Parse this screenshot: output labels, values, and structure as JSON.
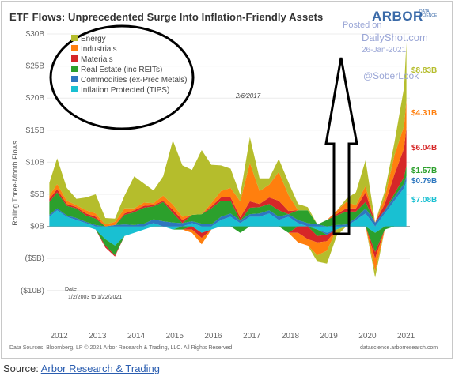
{
  "header": {
    "title": "ETF Flows: Unprecedented Surge Into Inflation-Friendly Assets",
    "brand": "ARBOR",
    "brand_sub": "DATA SCIENCE"
  },
  "watermark": {
    "posted": "Posted on",
    "site": "DailyShot.com",
    "date": "26-Jan-2021",
    "handle": "@SoberLook"
  },
  "footer": {
    "left": "Data Sources: Bloomberg, LP © 2021 Arbor Research & Trading, LLC. All Rights Reserved",
    "right": "datascience.arborresearch.com"
  },
  "source": {
    "prefix": "Source: ",
    "link": "Arbor Research & Trading"
  },
  "chart_data": {
    "type": "area",
    "ylabel": "Rolling Three-Month Flows",
    "y_ticks": [
      "$30B",
      "$25B",
      "$20B",
      "$15B",
      "$10B",
      "$5B",
      "$0B",
      "($5B)",
      "($10B)"
    ],
    "y_tick_values": [
      30,
      25,
      20,
      15,
      10,
      5,
      0,
      -5,
      -10
    ],
    "ylim": [
      -12,
      30
    ],
    "x_ticks": [
      "2012",
      "2013",
      "2014",
      "2015",
      "2016",
      "2017",
      "2018",
      "2019",
      "2020",
      "2021"
    ],
    "xlim": [
      2011.75,
      2021.15
    ],
    "legend_position": "top-left",
    "annotation": "2/6/2017",
    "date_note_label": "Date",
    "date_note_range": "1/2/2003 to 1/22/2021",
    "x": [
      2011.8,
      2012.0,
      2012.25,
      2012.5,
      2012.75,
      2013.0,
      2013.25,
      2013.5,
      2013.75,
      2014.0,
      2014.25,
      2014.5,
      2014.75,
      2015.0,
      2015.25,
      2015.5,
      2015.75,
      2016.0,
      2016.25,
      2016.5,
      2016.75,
      2017.0,
      2017.25,
      2017.5,
      2017.75,
      2018.0,
      2018.25,
      2018.5,
      2018.75,
      2019.0,
      2019.25,
      2019.5,
      2019.75,
      2020.0,
      2020.25,
      2020.5,
      2020.75,
      2021.0,
      2021.06
    ],
    "series": [
      {
        "name": "Inflation Protected (TIPS)",
        "color": "#19c0d2",
        "end_label": "$7.08B",
        "values": [
          1.5,
          2.5,
          1.5,
          1.0,
          0.5,
          -0.5,
          -2.0,
          -3.0,
          -1.5,
          -1.0,
          -0.5,
          0.5,
          0.0,
          -0.5,
          0.0,
          0.5,
          -1.0,
          -0.5,
          1.0,
          1.5,
          0.5,
          1.5,
          1.5,
          2.0,
          1.0,
          1.5,
          0.5,
          0.0,
          -0.5,
          -1.0,
          -0.5,
          0.0,
          1.0,
          2.0,
          -1.0,
          2.0,
          4.0,
          6.0,
          7.08
        ]
      },
      {
        "name": "Commodities (ex-Prec Metals)",
        "color": "#2e77bf",
        "end_label": "$0.79B",
        "values": [
          0.3,
          0.3,
          0.2,
          0.3,
          0.2,
          0.2,
          0.0,
          0.2,
          0.3,
          0.2,
          0.4,
          0.6,
          0.8,
          0.6,
          0.5,
          0.3,
          0.4,
          0.3,
          0.5,
          0.5,
          0.4,
          0.4,
          0.5,
          0.5,
          0.5,
          0.4,
          0.5,
          0.5,
          0.3,
          -0.3,
          0.2,
          0.3,
          0.3,
          0.8,
          0.6,
          0.5,
          0.6,
          0.7,
          0.79
        ]
      },
      {
        "name": "Real Estate (inc REITs)",
        "color": "#2ca02c",
        "end_label": "$1.57B",
        "values": [
          2.0,
          2.5,
          1.5,
          1.5,
          1.0,
          1.0,
          -1.0,
          -1.5,
          1.5,
          2.0,
          2.5,
          2.0,
          3.0,
          1.5,
          -0.5,
          1.0,
          1.5,
          2.5,
          2.5,
          2.0,
          -1.0,
          1.0,
          1.0,
          1.0,
          1.0,
          -1.0,
          1.5,
          2.0,
          -1.0,
          1.0,
          1.5,
          2.0,
          1.0,
          1.0,
          -3.0,
          -0.5,
          0.5,
          1.0,
          1.57
        ]
      },
      {
        "name": "Materials",
        "color": "#d62728",
        "end_label": "$6.04B",
        "values": [
          0.5,
          0.5,
          0.3,
          0.2,
          0.3,
          0.3,
          -0.3,
          -0.2,
          0.2,
          0.3,
          0.3,
          0.2,
          0.2,
          0.5,
          0.5,
          -0.5,
          -0.8,
          0.3,
          0.5,
          0.5,
          0.5,
          1.0,
          0.5,
          1.0,
          1.5,
          0.5,
          -1.0,
          -2.0,
          -1.0,
          -1.0,
          0.2,
          0.5,
          0.5,
          1.5,
          -1.0,
          1.0,
          3.0,
          4.5,
          6.04
        ]
      },
      {
        "name": "Industrials",
        "color": "#ff7f0e",
        "end_label": "$4.31B",
        "values": [
          0.5,
          0.8,
          0.5,
          0.3,
          0.5,
          0.5,
          0.3,
          0.5,
          0.8,
          0.3,
          0.5,
          0.3,
          0.8,
          0.8,
          0.5,
          -0.5,
          -1.0,
          0.5,
          1.0,
          1.5,
          2.5,
          6.0,
          2.0,
          2.0,
          4.5,
          2.5,
          -1.5,
          -1.0,
          -2.0,
          -1.5,
          0.5,
          1.0,
          0.5,
          1.0,
          -2.0,
          1.0,
          3.0,
          3.5,
          4.31
        ]
      },
      {
        "name": "Energy",
        "color": "#b5bd2c",
        "end_label": "$8.83B",
        "values": [
          2.0,
          4.0,
          2.0,
          1.0,
          2.0,
          3.0,
          1.0,
          0.5,
          2.0,
          5.0,
          3.0,
          2.0,
          3.0,
          10.0,
          8.0,
          7.0,
          10.0,
          6.0,
          4.0,
          3.0,
          1.0,
          4.0,
          2.0,
          1.0,
          2.0,
          2.0,
          1.0,
          0.5,
          -1.0,
          -2.0,
          -1.0,
          0.5,
          2.0,
          4.0,
          -1.0,
          1.0,
          2.0,
          6.0,
          8.83
        ]
      }
    ]
  }
}
